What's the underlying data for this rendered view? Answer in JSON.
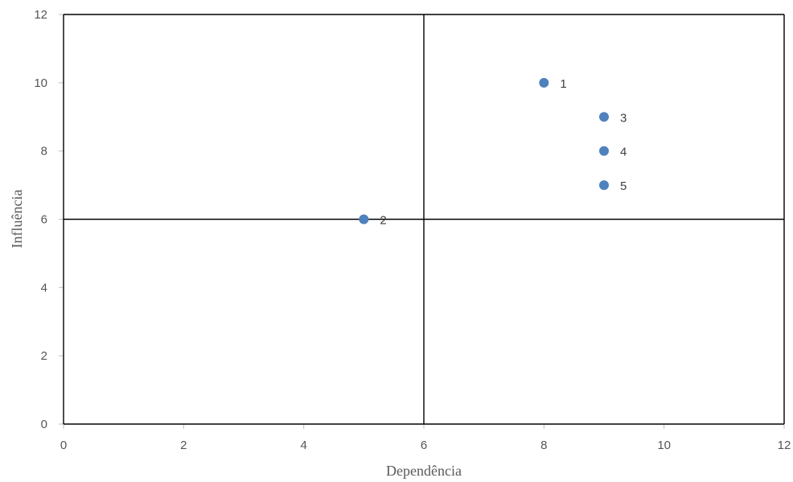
{
  "chart_data": {
    "type": "scatter",
    "xlabel": "Dependência",
    "ylabel": "Influência",
    "xlim": [
      0,
      12
    ],
    "ylim": [
      0,
      12
    ],
    "x_ticks": [
      0,
      2,
      4,
      6,
      8,
      10,
      12
    ],
    "y_ticks": [
      0,
      2,
      4,
      6,
      8,
      10,
      12
    ],
    "reference_lines": {
      "x": 6,
      "y": 6
    },
    "grid": false,
    "marker_color": "#4f81bd",
    "points": [
      {
        "label": "1",
        "x": 8,
        "y": 10
      },
      {
        "label": "2",
        "x": 5,
        "y": 6
      },
      {
        "label": "3",
        "x": 9,
        "y": 9
      },
      {
        "label": "4",
        "x": 9,
        "y": 8
      },
      {
        "label": "5",
        "x": 9,
        "y": 7
      }
    ]
  }
}
